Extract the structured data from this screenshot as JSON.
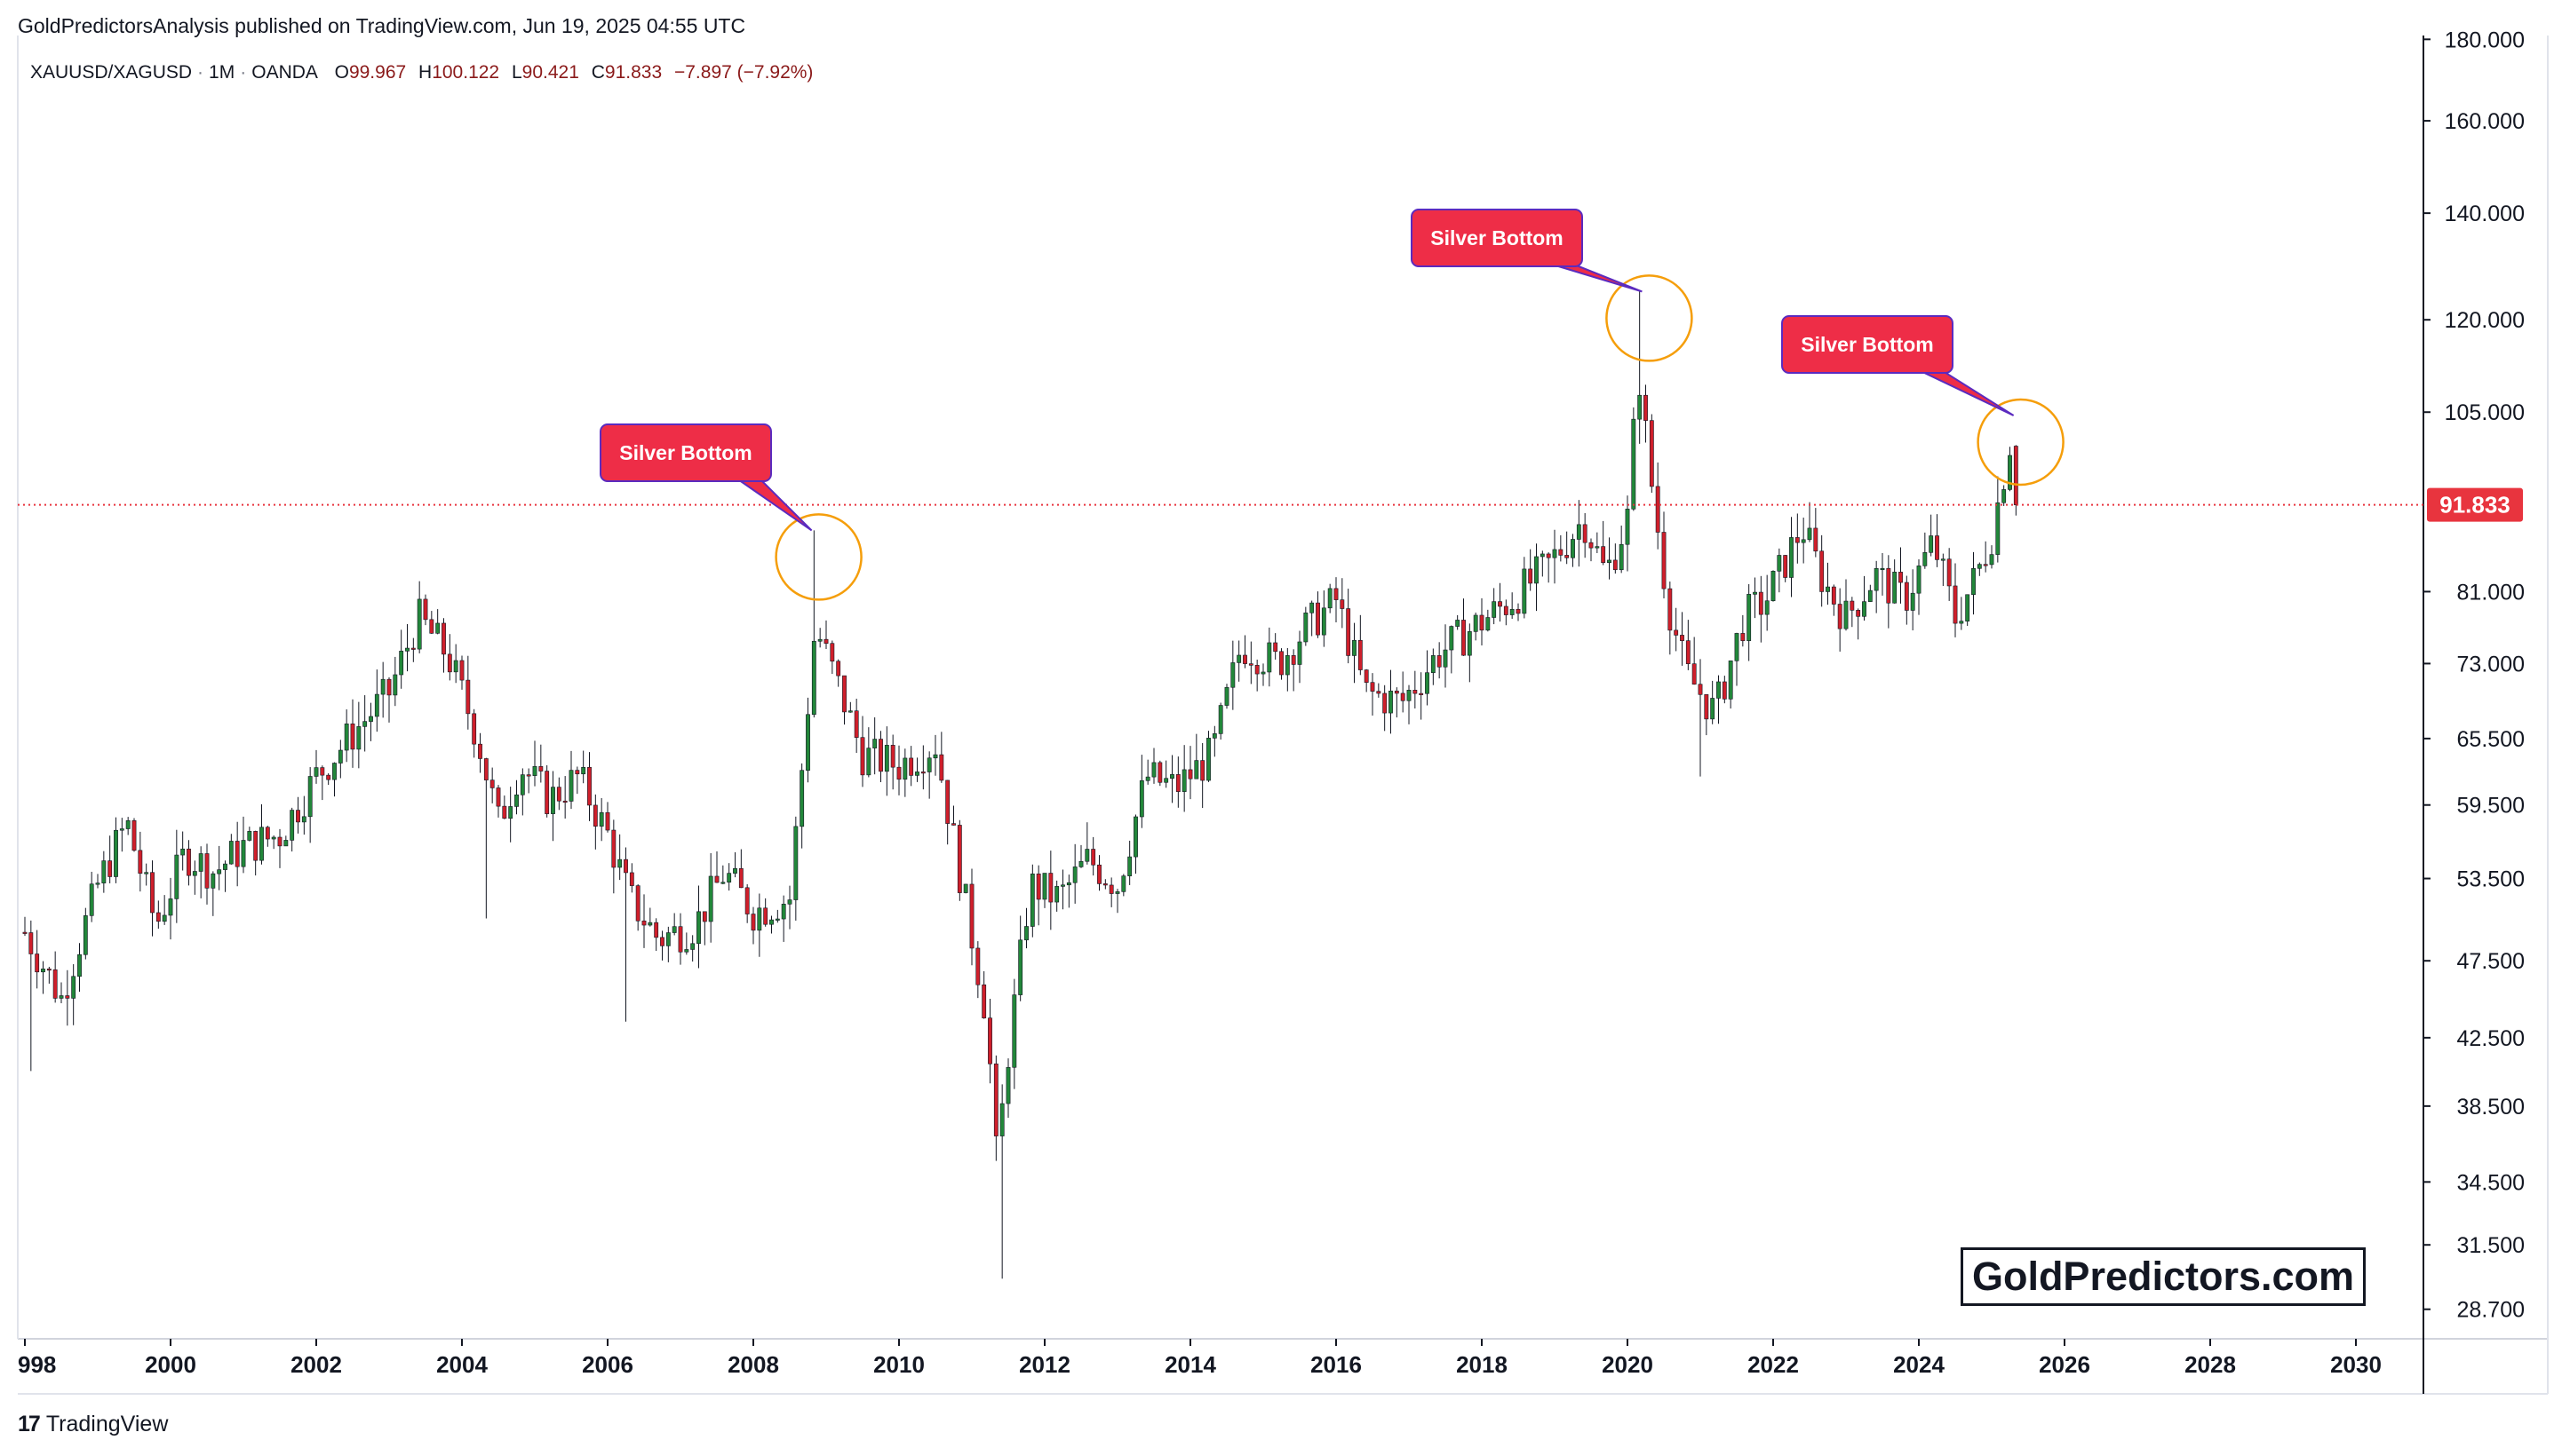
{
  "header": {
    "publisher_line": "GoldPredictorsAnalysis published on TradingView.com, Jun 19, 2025 04:55 UTC"
  },
  "legend": {
    "symbol": "XAUUSD/XAGUSD",
    "interval": "1M",
    "source": "OANDA",
    "open_label": "O",
    "open": "99.967",
    "high_label": "H",
    "high": "100.122",
    "low_label": "L",
    "low": "90.421",
    "close_label": "C",
    "close": "91.833",
    "change": "−7.897 (−7.92%)"
  },
  "footer": {
    "logo_text": "17",
    "name": "TradingView"
  },
  "brand": {
    "text": "GoldPredictors.com"
  },
  "colors": {
    "up": "#22873a",
    "down": "#cf1f2b",
    "wick": "#131722",
    "price_line": "#e8343e",
    "callout_bg": "#ee2d47",
    "callout_border": "#5b2bbf",
    "circle": "#f59e0b"
  },
  "chart_data": {
    "type": "candlestick",
    "interval": "monthly",
    "y_scale": "log",
    "ylim": [
      27.5,
      181
    ],
    "xlim": [
      1998.0,
      2031.0
    ],
    "y_ticks": [
      "180.000",
      "160.000",
      "140.000",
      "120.000",
      "105.000",
      "81.000",
      "73.000",
      "65.500",
      "59.500",
      "53.500",
      "47.500",
      "42.500",
      "38.500",
      "34.500",
      "31.500",
      "28.700"
    ],
    "x_ticks": [
      "998",
      "2000",
      "2002",
      "2004",
      "2006",
      "2008",
      "2010",
      "2012",
      "2014",
      "2016",
      "2018",
      "2020",
      "2022",
      "2024",
      "2026",
      "2028",
      "2030"
    ],
    "last_price": "91.833",
    "annotations": [
      {
        "text": "Silver Bottom",
        "x": 2008.8,
        "y": 88.5
      },
      {
        "text": "Silver Bottom",
        "x": 2020.2,
        "y": 125.0
      },
      {
        "text": "Silver Bottom",
        "x": 2025.3,
        "y": 104.5
      }
    ],
    "series": [
      {
        "anchors": [
          [
            1998.0,
            49.5
          ],
          [
            1998.5,
            45.0
          ],
          [
            1999.0,
            53.0
          ],
          [
            1999.4,
            58.0
          ],
          [
            1999.8,
            50.0
          ],
          [
            2000.2,
            55.5
          ],
          [
            2000.6,
            54.0
          ],
          [
            2001.0,
            56.0
          ],
          [
            2001.5,
            57.0
          ],
          [
            2002.0,
            62.0
          ],
          [
            2002.5,
            66.0
          ],
          [
            2003.0,
            70.0
          ],
          [
            2003.4,
            78.0
          ],
          [
            2003.8,
            74.0
          ],
          [
            2004.2,
            66.0
          ],
          [
            2004.5,
            58.0
          ],
          [
            2004.8,
            63.0
          ],
          [
            2005.2,
            60.0
          ],
          [
            2005.6,
            62.0
          ],
          [
            2006.0,
            57.0
          ],
          [
            2006.3,
            52.0
          ],
          [
            2006.7,
            49.0
          ],
          [
            2007.2,
            50.0
          ],
          [
            2007.6,
            54.0
          ],
          [
            2008.0,
            51.0
          ],
          [
            2008.5,
            52.0
          ],
          [
            2008.85,
            77.0
          ],
          [
            2009.2,
            70.0
          ],
          [
            2009.5,
            64.0
          ],
          [
            2010.0,
            63.0
          ],
          [
            2010.5,
            65.0
          ],
          [
            2010.9,
            52.0
          ],
          [
            2011.2,
            44.0
          ],
          [
            2011.35,
            35.0
          ],
          [
            2011.45,
            40.0
          ],
          [
            2011.8,
            53.0
          ],
          [
            2012.2,
            52.0
          ],
          [
            2012.6,
            55.0
          ],
          [
            2013.0,
            53.0
          ],
          [
            2013.4,
            62.0
          ],
          [
            2013.8,
            61.0
          ],
          [
            2014.3,
            64.0
          ],
          [
            2014.7,
            75.0
          ],
          [
            2015.2,
            73.0
          ],
          [
            2015.6,
            77.0
          ],
          [
            2016.0,
            80.0
          ],
          [
            2016.4,
            70.0
          ],
          [
            2016.9,
            69.0
          ],
          [
            2017.4,
            74.0
          ],
          [
            2017.9,
            77.0
          ],
          [
            2018.4,
            80.0
          ],
          [
            2018.9,
            84.0
          ],
          [
            2019.4,
            90.0
          ],
          [
            2019.7,
            83.0
          ],
          [
            2020.0,
            90.0
          ],
          [
            2020.15,
            112.0
          ],
          [
            2020.3,
            97.0
          ],
          [
            2020.55,
            80.0
          ],
          [
            2020.8,
            72.0
          ],
          [
            2021.2,
            68.0
          ],
          [
            2021.6,
            78.0
          ],
          [
            2021.9,
            80.0
          ],
          [
            2022.4,
            89.0
          ],
          [
            2022.7,
            82.0
          ],
          [
            2023.0,
            78.0
          ],
          [
            2023.4,
            83.0
          ],
          [
            2023.8,
            80.0
          ],
          [
            2024.2,
            87.0
          ],
          [
            2024.5,
            78.0
          ],
          [
            2024.8,
            83.0
          ],
          [
            2025.0,
            88.0
          ],
          [
            2025.25,
            100.5
          ],
          [
            2025.4,
            91.833
          ]
        ]
      }
    ]
  }
}
